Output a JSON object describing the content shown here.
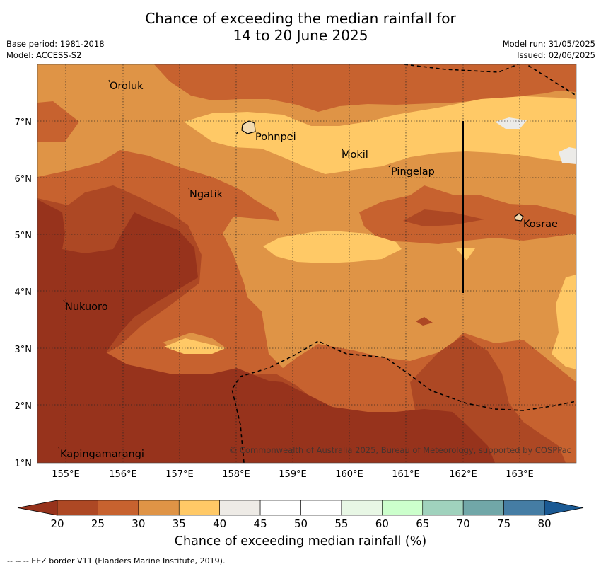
{
  "header": {
    "title_line1": "Chance of exceeding the median rainfall for",
    "title_line2": "14 to 20 June 2025",
    "base_period": "Base period: 1981-2018",
    "model": "Model: ACCESS-S2",
    "model_run": "Model run: 31/05/2025",
    "issued": "Issued: 02/06/2025"
  },
  "map": {
    "lon_labels": [
      "155°E",
      "156°E",
      "157°E",
      "158°E",
      "159°E",
      "160°E",
      "161°E",
      "162°E",
      "163°E"
    ],
    "lat_labels": [
      "1°N",
      "2°N",
      "3°N",
      "4°N",
      "5°N",
      "6°N",
      "7°N"
    ],
    "places": [
      "Oroluk",
      "Pohnpei",
      "Mokil",
      "Pingelap",
      "Ngatik",
      "Kosrae",
      "Nukuoro",
      "Kapingamarangi"
    ],
    "copyright": "© Commonwealth of Australia 2025, Bureau of Meteorology, supported by COSPPac",
    "colors": {
      "c20": "#97331c",
      "c25": "#ad4824",
      "c30": "#c7622f",
      "c35": "#df9446",
      "c40": "#ffc966",
      "c45": "#ecebe8",
      "grid": "#222222"
    }
  },
  "colorbar": {
    "ticks": [
      "20",
      "25",
      "30",
      "35",
      "40",
      "45",
      "50",
      "55",
      "60",
      "65",
      "70",
      "75",
      "80"
    ],
    "colors": [
      "#ad4824",
      "#c7622f",
      "#df9446",
      "#ffc966",
      "#eeebe6",
      "#ffffff",
      "#ffffff",
      "#e8f7e5",
      "#ccffcc",
      "#a0d2bd",
      "#71a7a8",
      "#457da4"
    ],
    "under_color": "#97331c",
    "over_color": "#1b5a94",
    "label": "Chance of exceeding median rainfall (%)"
  },
  "footer": "--  --  -- EEZ border V11 (Flanders Marine Institute, 2019)."
}
